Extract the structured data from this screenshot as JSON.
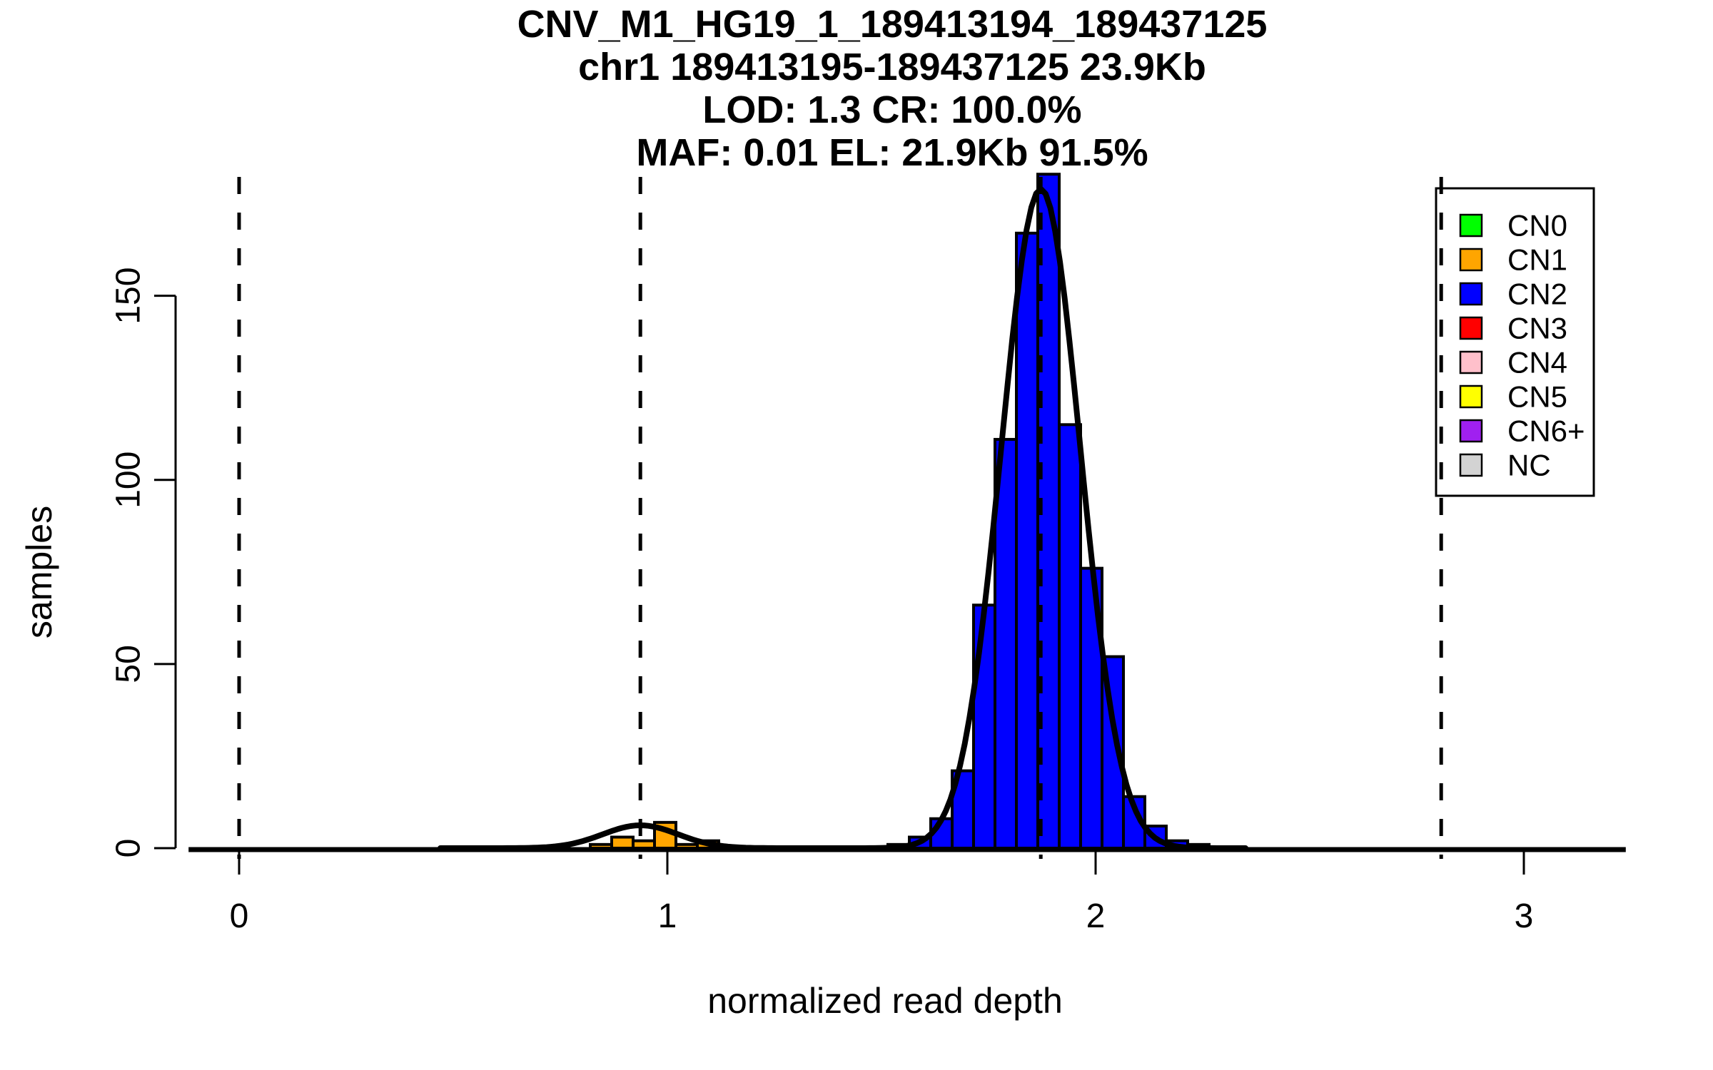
{
  "figure": {
    "title_lines": [
      "CNV_M1_HG19_1_189413194_189437125",
      "chr1 189413195-189437125 23.9Kb",
      "LOD: 1.3 CR: 100.0%",
      "MAF: 0.01 EL: 21.9Kb 91.5%"
    ]
  },
  "chart_data": {
    "type": "bar",
    "subtype": "histogram_with_density_overlay",
    "title": "CNV_M1_HG19_1_189413194_189437125",
    "xlabel": "normalized read depth",
    "ylabel": "samples",
    "x_ticks": [
      0,
      1,
      2,
      3
    ],
    "y_ticks": [
      0,
      50,
      100,
      150
    ],
    "xlim": [
      -0.12,
      3.3
    ],
    "ylim": [
      0,
      190
    ],
    "grid": false,
    "legend_position": "top-right",
    "dashed_guides_x": [
      0.0,
      0.937,
      1.872,
      2.807
    ],
    "series": [
      {
        "name": "CN1",
        "color": "#FFA500",
        "bin_start": 0.82,
        "bin_width": 0.05,
        "counts": [
          1,
          3,
          2,
          7,
          1,
          2
        ]
      },
      {
        "name": "CN2",
        "color": "#0000FF",
        "bin_start": 1.515,
        "bin_width": 0.05,
        "counts": [
          1,
          3,
          8,
          21,
          66,
          111,
          167,
          183,
          115,
          76,
          52,
          14,
          6,
          2,
          1
        ]
      }
    ],
    "density_curves": [
      {
        "name": "CN1-density",
        "mu": 0.937,
        "sigma": 0.088,
        "peak": 6.2,
        "x_range": [
          0.47,
          1.4
        ],
        "color": "#000000"
      },
      {
        "name": "CN2-density",
        "mu": 1.872,
        "sigma": 0.0925,
        "peak": 179,
        "x_range": [
          1.35,
          2.35
        ],
        "color": "#000000"
      }
    ],
    "baseline_segments_x": [
      [
        -0.118,
        2.262
      ],
      [
        2.351,
        3.238
      ]
    ],
    "legend": [
      {
        "label": "CN0",
        "color": "#00FF00"
      },
      {
        "label": "CN1",
        "color": "#FFA500"
      },
      {
        "label": "CN2",
        "color": "#0000FF"
      },
      {
        "label": "CN3",
        "color": "#FF0000"
      },
      {
        "label": "CN4",
        "color": "#FFC0CB"
      },
      {
        "label": "CN5",
        "color": "#FFFF00"
      },
      {
        "label": "CN6+",
        "color": "#A020F0"
      },
      {
        "label": "NC",
        "color": "#D3D3D3"
      }
    ]
  }
}
